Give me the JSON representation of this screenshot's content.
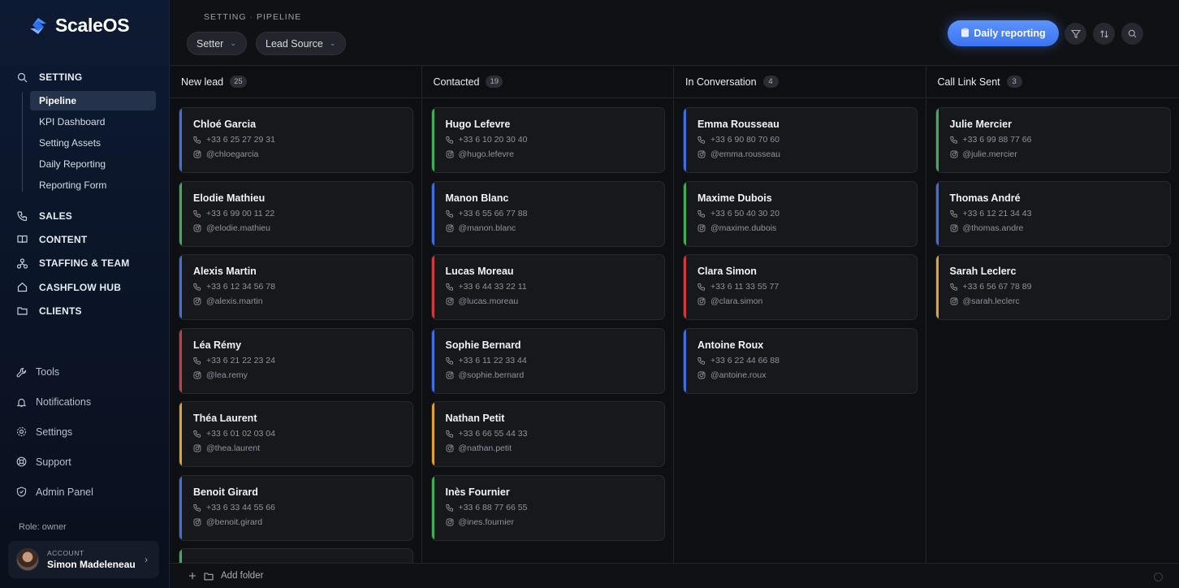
{
  "app": {
    "name": "ScaleOS"
  },
  "sidebar": {
    "setting": {
      "label": "SETTING",
      "items": [
        {
          "label": "Pipeline",
          "active": true
        },
        {
          "label": "KPI Dashboard"
        },
        {
          "label": "Setting Assets"
        },
        {
          "label": "Daily Reporting"
        },
        {
          "label": "Reporting Form"
        }
      ]
    },
    "sections": [
      {
        "label": "SALES",
        "icon": "phone-icon"
      },
      {
        "label": "CONTENT",
        "icon": "book-icon"
      },
      {
        "label": "STAFFING & TEAM",
        "icon": "team-icon"
      },
      {
        "label": "CASHFLOW HUB",
        "icon": "home-icon"
      },
      {
        "label": "CLIENTS",
        "icon": "folder-icon"
      }
    ],
    "bottom": [
      {
        "label": "Tools",
        "icon": "wrench-icon"
      },
      {
        "label": "Notifications",
        "icon": "bell-icon"
      },
      {
        "label": "Settings",
        "icon": "gear-icon"
      },
      {
        "label": "Support",
        "icon": "lifebuoy-icon"
      },
      {
        "label": "Admin Panel",
        "icon": "shield-icon"
      }
    ],
    "role": "Role: owner",
    "account": {
      "label": "ACCOUNT",
      "name": "Simon Madeleneau"
    }
  },
  "header": {
    "breadcrumb": [
      "SETTING",
      "PIPELINE"
    ],
    "filters": [
      {
        "label": "Setter"
      },
      {
        "label": "Lead Source"
      }
    ],
    "report_button": "Daily reporting"
  },
  "board": {
    "columns": [
      {
        "title": "New lead",
        "count": "25",
        "cards": [
          {
            "name": "Chloé Garcia",
            "phone": "+33 6 25 27 29 31",
            "handle": "@chloegarcia",
            "color": "#3f6ee0"
          },
          {
            "name": "Elodie Mathieu",
            "phone": "+33 6 99 00 11 22",
            "handle": "@elodie.mathieu",
            "color": "#3fae55"
          },
          {
            "name": "Alexis Martin",
            "phone": "+33 6 12 34 56 78",
            "handle": "@alexis.martin",
            "color": "#3f6ee0"
          },
          {
            "name": "Léa Rémy",
            "phone": "+33 6 21 22 23 24",
            "handle": "@lea.remy",
            "color": "#d13a3a"
          },
          {
            "name": "Théa Laurent",
            "phone": "+33 6 01 02 03 04",
            "handle": "@thea.laurent",
            "color": "#e0a12e"
          },
          {
            "name": "Benoit Girard",
            "phone": "+33 6 33 44 55 66",
            "handle": "@benoit.girard",
            "color": "#3f6ee0"
          }
        ]
      },
      {
        "title": "Contacted",
        "count": "19",
        "cards": [
          {
            "name": "Hugo Lefevre",
            "phone": "+33 6 10 20 30 40",
            "handle": "@hugo.lefevre",
            "color": "#3fae55"
          },
          {
            "name": "Manon Blanc",
            "phone": "+33 6 55 66 77 88",
            "handle": "@manon.blanc",
            "color": "#3f6ee0"
          },
          {
            "name": "Lucas Moreau",
            "phone": "+33 6 44 33 22 11",
            "handle": "@lucas.moreau",
            "color": "#d13a3a"
          },
          {
            "name": "Sophie Bernard",
            "phone": "+33 6 11 22 33 44",
            "handle": "@sophie.bernard",
            "color": "#3f6ee0"
          },
          {
            "name": "Nathan Petit",
            "phone": "+33 6 66 55 44 33",
            "handle": "@nathan.petit",
            "color": "#e0a12e"
          },
          {
            "name": "Inès Fournier",
            "phone": "+33 6 88 77 66 55",
            "handle": "@ines.fournier",
            "color": "#3fae55"
          }
        ]
      },
      {
        "title": "In Conversation",
        "count": "4",
        "cards": [
          {
            "name": "Emma Rousseau",
            "phone": "+33 6 90 80 70 60",
            "handle": "@emma.rousseau",
            "color": "#3f6ee0"
          },
          {
            "name": "Maxime Dubois",
            "phone": "+33 6 50 40 30 20",
            "handle": "@maxime.dubois",
            "color": "#3fae55"
          },
          {
            "name": "Clara Simon",
            "phone": "+33 6 11 33 55 77",
            "handle": "@clara.simon",
            "color": "#d13a3a"
          },
          {
            "name": "Antoine Roux",
            "phone": "+33 6 22 44 66 88",
            "handle": "@antoine.roux",
            "color": "#3f6ee0"
          }
        ]
      },
      {
        "title": "Call Link Sent",
        "count": "3",
        "cards": [
          {
            "name": "Julie Mercier",
            "phone": "+33 6 99 88 77 66",
            "handle": "@julie.mercier",
            "color": "#3fae55"
          },
          {
            "name": "Thomas André",
            "phone": "+33 6 12 21 34 43",
            "handle": "@thomas.andre",
            "color": "#3f6ee0"
          },
          {
            "name": "Sarah Leclerc",
            "phone": "+33 6 56 67 78 89",
            "handle": "@sarah.leclerc",
            "color": "#e0a12e"
          }
        ]
      }
    ]
  },
  "footer": {
    "add_folder": "Add folder"
  }
}
